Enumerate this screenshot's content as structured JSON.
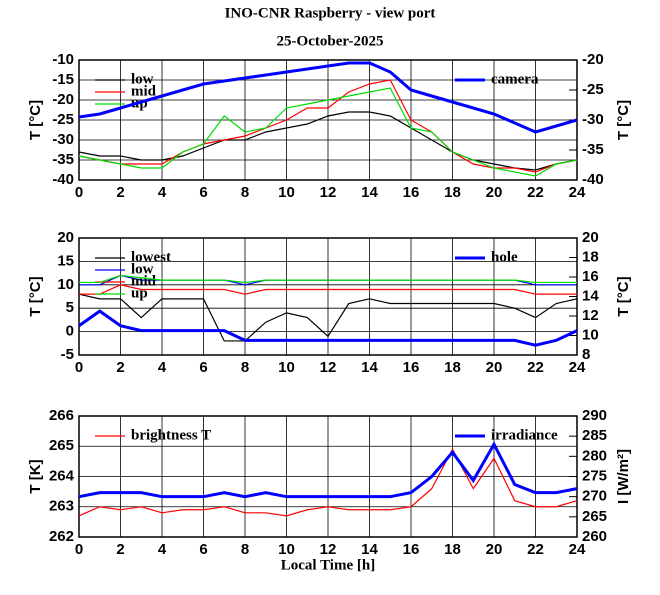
{
  "chart_data": [
    {
      "type": "line",
      "title": "INO-CNR Raspberry - view port",
      "subtitle": "25-October-2025",
      "ylabel": "T [°C]",
      "y2label": "T [°C]",
      "x": [
        0,
        1,
        2,
        3,
        4,
        5,
        6,
        7,
        8,
        9,
        10,
        11,
        12,
        13,
        14,
        15,
        16,
        17,
        18,
        19,
        20,
        21,
        22,
        23,
        24
      ],
      "xlim": [
        0,
        24
      ],
      "xticks": [
        0,
        2,
        4,
        6,
        8,
        10,
        12,
        14,
        16,
        18,
        20,
        22,
        24
      ],
      "ylim": [
        -40,
        -10
      ],
      "yticks": [
        -40,
        -35,
        -30,
        -25,
        -20,
        -15,
        -10
      ],
      "y2lim": [
        -40,
        -20
      ],
      "y2ticks": [
        -40,
        -35,
        -30,
        -25,
        -20
      ],
      "grid": true,
      "series": [
        {
          "name": "low",
          "color": "#000000",
          "values": [
            -33,
            -34,
            -34,
            -35,
            -35,
            -34,
            -32,
            -30,
            -30,
            -28,
            -27,
            -26,
            -24,
            -23,
            -23,
            -24,
            -27,
            -30,
            -33,
            -35,
            -36,
            -37,
            -37.5,
            -36,
            -35
          ]
        },
        {
          "name": "mid",
          "color": "#ff0000",
          "values": [
            -34,
            -35,
            -36,
            -36,
            -36,
            -33,
            -31,
            -30,
            -29,
            -27,
            -25,
            -22,
            -22,
            -18,
            -16,
            -15,
            -25,
            -28,
            -33,
            -36,
            -37,
            -37,
            -38,
            -36,
            -35
          ]
        },
        {
          "name": "up",
          "color": "#00dd00",
          "values": [
            -34,
            -35,
            -36,
            -37,
            -37,
            -33,
            -31,
            -24,
            -28,
            -27,
            -22,
            -21,
            -20,
            -19,
            -18,
            -17,
            -27,
            -28,
            -33,
            -35,
            -37,
            -38,
            -39,
            -36,
            -35
          ]
        },
        {
          "name": "camera",
          "color": "#0000ff",
          "axis": "y2",
          "values": [
            -29.5,
            -29,
            -28,
            -27,
            -26,
            -25,
            -24,
            -23.5,
            -23,
            -22.5,
            -22,
            -21.5,
            -21,
            -20.5,
            -20.5,
            -22,
            -25,
            -26,
            -27,
            -28,
            -29,
            -30.5,
            -32,
            -31,
            -30
          ]
        }
      ]
    },
    {
      "type": "line",
      "ylabel": "T [°C]",
      "y2label": "T [°C]",
      "x": [
        0,
        1,
        2,
        3,
        4,
        5,
        6,
        7,
        8,
        9,
        10,
        11,
        12,
        13,
        14,
        15,
        16,
        17,
        18,
        19,
        20,
        21,
        22,
        23,
        24
      ],
      "xlim": [
        0,
        24
      ],
      "xticks": [
        0,
        2,
        4,
        6,
        8,
        10,
        12,
        14,
        16,
        18,
        20,
        22,
        24
      ],
      "ylim": [
        -5,
        20
      ],
      "yticks": [
        -5,
        0,
        5,
        10,
        15,
        20
      ],
      "y2lim": [
        8,
        20
      ],
      "y2ticks": [
        8,
        10,
        12,
        14,
        16,
        18,
        20
      ],
      "grid": true,
      "series": [
        {
          "name": "lowest",
          "color": "#000000",
          "values": [
            8,
            7,
            7,
            3,
            7,
            7,
            7,
            -2,
            -2,
            2,
            4,
            3,
            -1,
            6,
            7,
            6,
            6,
            6,
            6,
            6,
            6,
            5,
            3,
            6,
            7
          ]
        },
        {
          "name": "low",
          "color": "#0000ff",
          "values": [
            10,
            10,
            12,
            11,
            11,
            11,
            11,
            11,
            10,
            11,
            11,
            11,
            11,
            11,
            11,
            11,
            11,
            11,
            11,
            11,
            11,
            11,
            10,
            10,
            10
          ]
        },
        {
          "name": "mid",
          "color": "#ff0000",
          "values": [
            8,
            8,
            10,
            9,
            9,
            9,
            9,
            9,
            8,
            9,
            9,
            9,
            9,
            9,
            9,
            9,
            9,
            9,
            9,
            9,
            9,
            9,
            8,
            8,
            8
          ]
        },
        {
          "name": "up",
          "color": "#00dd00",
          "values": [
            10.5,
            10.5,
            12,
            11.5,
            11,
            11,
            11,
            11,
            10.5,
            11,
            11,
            11,
            11,
            11,
            11,
            11,
            11,
            11,
            11,
            11,
            11,
            11,
            10.5,
            10.5,
            10.5
          ]
        },
        {
          "name": "hole",
          "color": "#0000ff",
          "axis": "y2",
          "values": [
            11,
            12.5,
            11,
            10.5,
            10.5,
            10.5,
            10.5,
            10.5,
            9.5,
            9.5,
            9.5,
            9.5,
            9.5,
            9.5,
            9.5,
            9.5,
            9.5,
            9.5,
            9.5,
            9.5,
            9.5,
            9.5,
            9,
            9.5,
            10.5
          ]
        }
      ]
    },
    {
      "type": "line",
      "ylabel": "T [K]",
      "y2label": "I [W/m²]",
      "xlabel": "Local Time [h]",
      "x": [
        0,
        1,
        2,
        3,
        4,
        5,
        6,
        7,
        8,
        9,
        10,
        11,
        12,
        13,
        14,
        15,
        16,
        17,
        18,
        19,
        20,
        21,
        22,
        23,
        24
      ],
      "xlim": [
        0,
        24
      ],
      "xticks": [
        0,
        2,
        4,
        6,
        8,
        10,
        12,
        14,
        16,
        18,
        20,
        22,
        24
      ],
      "ylim": [
        262,
        266
      ],
      "yticks": [
        262,
        263,
        264,
        265,
        266
      ],
      "y2lim": [
        260,
        290
      ],
      "y2ticks": [
        260,
        265,
        270,
        275,
        280,
        285,
        290
      ],
      "grid": true,
      "series": [
        {
          "name": "brightness T",
          "color": "#ff0000",
          "values": [
            262.7,
            263,
            262.9,
            263,
            262.8,
            262.9,
            262.9,
            263,
            262.8,
            262.8,
            262.7,
            262.9,
            263,
            262.9,
            262.9,
            262.9,
            263,
            263.6,
            264.9,
            263.6,
            264.6,
            263.2,
            263,
            263,
            263.2
          ]
        },
        {
          "name": "irradiance",
          "color": "#0000ff",
          "axis": "y2",
          "values": [
            270,
            271,
            271,
            271,
            270,
            270,
            270,
            271,
            270,
            271,
            270,
            270,
            270,
            270,
            270,
            270,
            271,
            275,
            281,
            274,
            283,
            273,
            271,
            271,
            272
          ]
        }
      ]
    }
  ]
}
